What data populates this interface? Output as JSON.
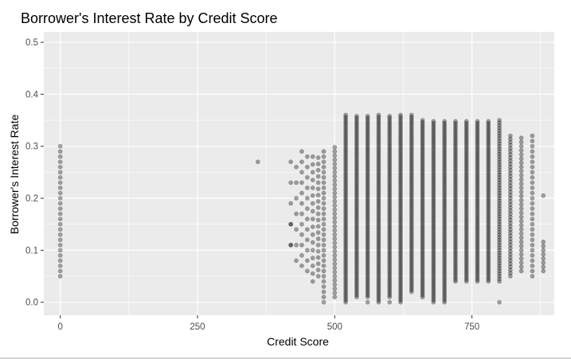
{
  "chart_data": {
    "type": "scatter",
    "title": "Borrower's Interest Rate by Credit Score",
    "xlabel": "Credit Score",
    "ylabel": "Borrower's Interest Rate",
    "xlim": [
      -30,
      900
    ],
    "ylim": [
      -0.025,
      0.52
    ],
    "x_ticks": [
      0,
      250,
      500,
      750
    ],
    "x_tick_labels": [
      "0",
      "250",
      "500",
      "750"
    ],
    "y_ticks": [
      0.0,
      0.1,
      0.2,
      0.3,
      0.4,
      0.5
    ],
    "y_tick_labels": [
      "0.0",
      "0.1",
      "0.2",
      "0.3",
      "0.4",
      "0.5"
    ],
    "grid": true,
    "point_color": "#000000",
    "point_opacity": 0.35,
    "background_color": "#ebebeb",
    "grid_color": "#ffffff",
    "columns": [
      {
        "x": 0,
        "ymin": 0.05,
        "ymax": 0.3,
        "step": 0.01
      },
      {
        "x": 420,
        "ymin": 0.11,
        "ymax": 0.29,
        "step": 0.04
      },
      {
        "x": 430,
        "ymin": 0.08,
        "ymax": 0.28,
        "step": 0.03
      },
      {
        "x": 440,
        "ymin": 0.07,
        "ymax": 0.29,
        "step": 0.02
      },
      {
        "x": 450,
        "ymin": 0.06,
        "ymax": 0.28,
        "step": 0.02
      },
      {
        "x": 460,
        "ymin": 0.04,
        "ymax": 0.29,
        "step": 0.015
      },
      {
        "x": 470,
        "ymin": 0.05,
        "ymax": 0.28,
        "step": 0.012
      },
      {
        "x": 480,
        "ymin": 0.0,
        "ymax": 0.29,
        "step": 0.01
      },
      {
        "x": 500,
        "ymin": 0.01,
        "ymax": 0.3,
        "step": 0.008
      },
      {
        "x": 520,
        "ymin": 0.0,
        "ymax": 0.36,
        "step": 0.004
      },
      {
        "x": 540,
        "ymin": 0.01,
        "ymax": 0.36,
        "step": 0.004
      },
      {
        "x": 560,
        "ymin": 0.01,
        "ymax": 0.36,
        "step": 0.004
      },
      {
        "x": 580,
        "ymin": 0.0,
        "ymax": 0.36,
        "step": 0.004
      },
      {
        "x": 600,
        "ymin": 0.01,
        "ymax": 0.36,
        "step": 0.004
      },
      {
        "x": 620,
        "ymin": 0.0,
        "ymax": 0.36,
        "step": 0.004
      },
      {
        "x": 640,
        "ymin": 0.02,
        "ymax": 0.36,
        "step": 0.004
      },
      {
        "x": 660,
        "ymin": 0.01,
        "ymax": 0.35,
        "step": 0.004
      },
      {
        "x": 680,
        "ymin": 0.0,
        "ymax": 0.35,
        "step": 0.004
      },
      {
        "x": 700,
        "ymin": 0.0,
        "ymax": 0.35,
        "step": 0.004
      },
      {
        "x": 720,
        "ymin": 0.04,
        "ymax": 0.35,
        "step": 0.004
      },
      {
        "x": 740,
        "ymin": 0.04,
        "ymax": 0.35,
        "step": 0.004
      },
      {
        "x": 760,
        "ymin": 0.04,
        "ymax": 0.35,
        "step": 0.004
      },
      {
        "x": 780,
        "ymin": 0.04,
        "ymax": 0.35,
        "step": 0.004
      },
      {
        "x": 800,
        "ymin": 0.04,
        "ymax": 0.35,
        "step": 0.005
      },
      {
        "x": 820,
        "ymin": 0.05,
        "ymax": 0.32,
        "step": 0.006
      },
      {
        "x": 840,
        "ymin": 0.06,
        "ymax": 0.32,
        "step": 0.008
      },
      {
        "x": 860,
        "ymin": 0.05,
        "ymax": 0.32,
        "step": 0.01
      },
      {
        "x": 880,
        "ymin": 0.06,
        "ymax": 0.12,
        "step": 0.008
      }
    ],
    "points": [
      {
        "x": 360,
        "y": 0.27
      },
      {
        "x": 420,
        "y": 0.15
      },
      {
        "x": 420,
        "y": 0.11
      },
      {
        "x": 800,
        "y": 0.0
      },
      {
        "x": 880,
        "y": 0.205
      },
      {
        "x": 600,
        "y": 0.0
      },
      {
        "x": 560,
        "y": 0.0
      }
    ]
  }
}
